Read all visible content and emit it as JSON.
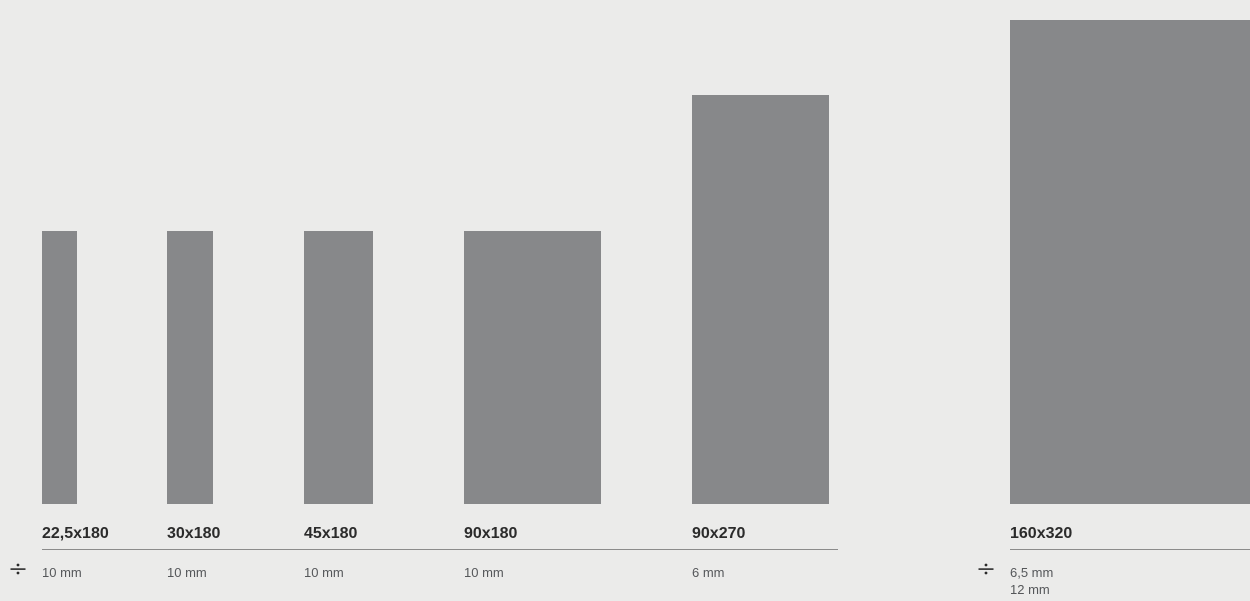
{
  "sizes": [
    {
      "label": "22,5x180",
      "thickness": "10 mm"
    },
    {
      "label": "30x180",
      "thickness": "10 mm"
    },
    {
      "label": "45x180",
      "thickness": "10 mm"
    },
    {
      "label": "90x180",
      "thickness": "10 mm"
    },
    {
      "label": "90x270",
      "thickness": "6 mm"
    },
    {
      "label": "160x320",
      "thickness_1": "6,5 mm",
      "thickness_2": "12 mm"
    }
  ],
  "icons": {
    "thickness": "thickness-icon"
  },
  "colors": {
    "tile": "#87888a",
    "background": "#ebebea",
    "rule": "#8b8b8b"
  }
}
